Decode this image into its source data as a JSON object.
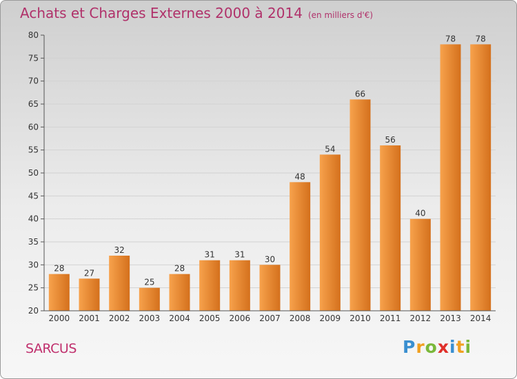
{
  "chart_data": {
    "type": "bar",
    "title": "Achats et Charges Externes 2000 à 2014",
    "subtitle": "(en milliers d'€)",
    "categories": [
      "2000",
      "2001",
      "2002",
      "2003",
      "2004",
      "2005",
      "2006",
      "2007",
      "2008",
      "2009",
      "2010",
      "2011",
      "2012",
      "2013",
      "2014"
    ],
    "values": [
      28,
      27,
      32,
      25,
      28,
      31,
      31,
      30,
      48,
      54,
      66,
      56,
      40,
      78,
      78
    ],
    "ylim": [
      20,
      80
    ],
    "yticks": [
      20,
      25,
      30,
      35,
      40,
      45,
      50,
      55,
      60,
      65,
      70,
      75,
      80
    ],
    "grid": true,
    "bar_color_light": "#f7a24c",
    "bar_color_dark": "#d4701c"
  },
  "commune": "SARCUS",
  "logo": {
    "letters": [
      "P",
      "r",
      "o",
      "x",
      "i",
      "t",
      "i"
    ],
    "colors": [
      "#3a8fd0",
      "#f0a020",
      "#7ab83a",
      "#e0302a",
      "#3a8fd0",
      "#f0a020",
      "#7ab83a"
    ]
  }
}
